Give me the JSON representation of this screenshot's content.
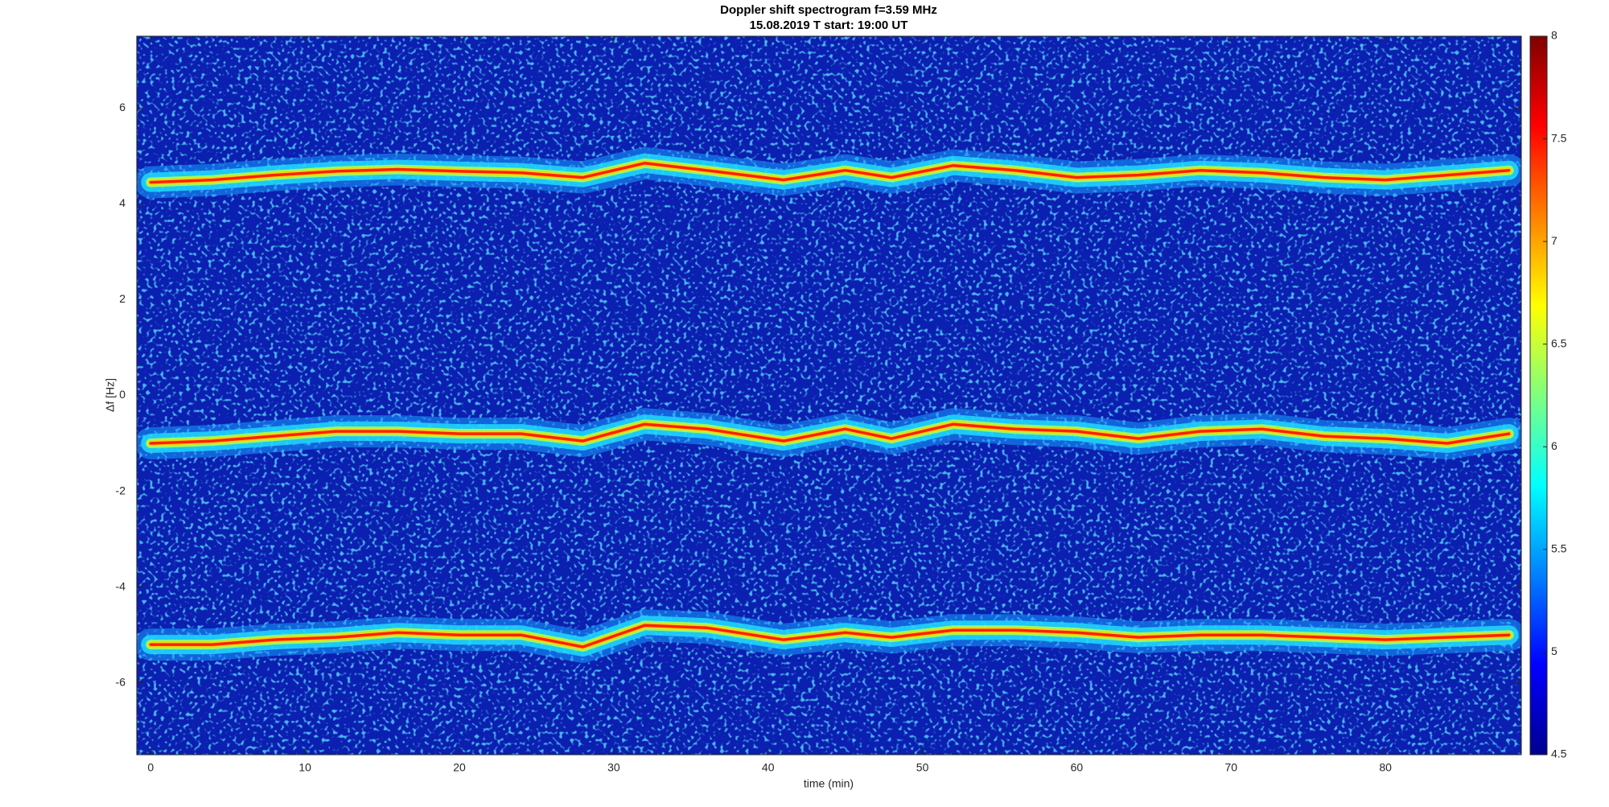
{
  "chart_data": {
    "type": "spectrogram",
    "title": "Doppler shift spectrogram f=3.59 MHz",
    "subtitle": "15.08.2019   T start: 19:00 UT",
    "x_label": "time (min)",
    "y_label": "Δf [Hz]",
    "xlim": [
      -0.9,
      88.8
    ],
    "xticks": [
      0,
      10,
      20,
      30,
      40,
      50,
      60,
      70,
      80
    ],
    "ylim": [
      -7.5,
      7.5
    ],
    "yticks": [
      -6,
      -4,
      -2,
      0,
      2,
      4,
      6
    ],
    "clim": [
      4.5,
      8
    ],
    "cticks": [
      4.5,
      5,
      5.5,
      6,
      6.5,
      7,
      7.5,
      8
    ],
    "x": [
      0,
      4,
      8,
      12,
      16,
      20,
      24,
      28,
      32,
      36,
      41,
      45,
      48,
      52,
      56,
      60,
      64,
      68,
      72,
      76,
      80,
      84,
      88
    ],
    "series": [
      {
        "color": "#ff2000",
        "values": [
          4.45,
          4.5,
          4.6,
          4.68,
          4.72,
          4.68,
          4.65,
          4.55,
          4.85,
          4.7,
          4.5,
          4.7,
          4.55,
          4.8,
          4.7,
          4.55,
          4.6,
          4.7,
          4.65,
          4.55,
          4.5,
          4.6,
          4.7
        ]
      },
      {
        "color": "#ff2000",
        "values": [
          -1.0,
          -0.95,
          -0.85,
          -0.75,
          -0.75,
          -0.8,
          -0.8,
          -0.95,
          -0.6,
          -0.7,
          -0.95,
          -0.7,
          -0.9,
          -0.6,
          -0.7,
          -0.75,
          -0.9,
          -0.75,
          -0.7,
          -0.85,
          -0.9,
          -1.0,
          -0.8
        ]
      },
      {
        "color": "#ff2000",
        "values": [
          -5.2,
          -5.2,
          -5.1,
          -5.05,
          -4.95,
          -5.0,
          -5.0,
          -5.25,
          -4.8,
          -4.85,
          -5.1,
          -4.95,
          -5.05,
          -4.9,
          -4.9,
          -4.95,
          -5.05,
          -5.0,
          -5.0,
          -5.05,
          -5.1,
          -5.05,
          -5.0
        ]
      }
    ]
  }
}
